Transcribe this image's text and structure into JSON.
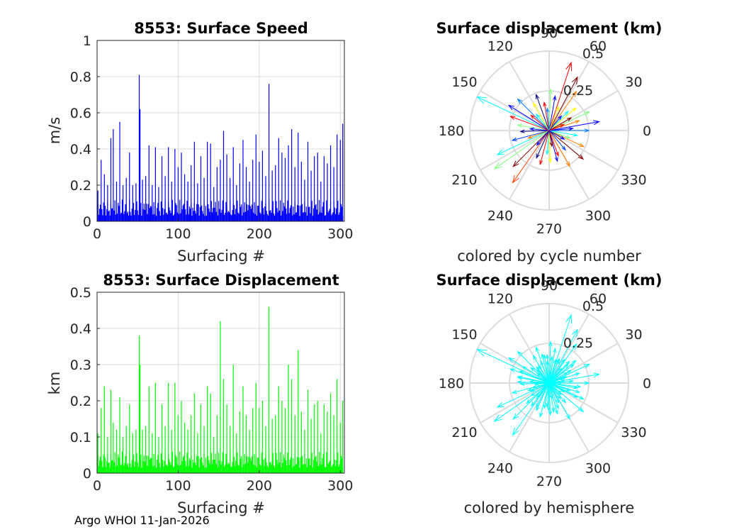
{
  "footer": "Argo WHOI 11-Jan-2026",
  "chart_data": [
    {
      "type": "bar",
      "title": "8553: Surface Speed",
      "xlabel": "Surfacing #",
      "ylabel": "m/s",
      "xlim": [
        0,
        305
      ],
      "ylim": [
        0,
        1
      ],
      "xticks": [
        "0",
        "100",
        "200",
        "300"
      ],
      "yticks": [
        "0",
        "0.2",
        "0.4",
        "0.6",
        "0.8",
        "1"
      ],
      "grid": true,
      "color": "#0000ff",
      "series_note": "approximate per-surfacing values read from the figure",
      "x": [
        1,
        5,
        9,
        13,
        17,
        20,
        24,
        28,
        32,
        36,
        40,
        44,
        48,
        52,
        53,
        56,
        60,
        64,
        68,
        72,
        76,
        80,
        84,
        88,
        92,
        96,
        100,
        104,
        108,
        112,
        116,
        120,
        124,
        128,
        132,
        136,
        140,
        144,
        148,
        152,
        156,
        160,
        164,
        168,
        172,
        176,
        180,
        184,
        188,
        192,
        196,
        200,
        204,
        208,
        212,
        216,
        220,
        224,
        228,
        232,
        236,
        240,
        244,
        248,
        252,
        256,
        260,
        264,
        268,
        272,
        276,
        280,
        284,
        288,
        292,
        296,
        300,
        303
      ],
      "values": [
        0.17,
        0.34,
        0.26,
        0.2,
        0.46,
        0.51,
        0.22,
        0.55,
        0.2,
        0.24,
        0.38,
        0.2,
        0.21,
        0.81,
        0.62,
        0.23,
        0.25,
        0.42,
        0.2,
        0.41,
        0.19,
        0.36,
        0.25,
        0.41,
        0.22,
        0.4,
        0.3,
        0.38,
        0.26,
        0.22,
        0.31,
        0.44,
        0.21,
        0.36,
        0.24,
        0.44,
        0.43,
        0.19,
        0.3,
        0.34,
        0.5,
        0.37,
        0.24,
        0.41,
        0.2,
        0.32,
        0.45,
        0.3,
        0.22,
        0.34,
        0.48,
        0.33,
        0.39,
        0.25,
        0.76,
        0.28,
        0.31,
        0.46,
        0.38,
        0.35,
        0.42,
        0.51,
        0.3,
        0.49,
        0.33,
        0.23,
        0.44,
        0.28,
        0.36,
        0.38,
        0.22,
        0.36,
        0.32,
        0.42,
        0.3,
        0.48,
        0.45,
        0.54
      ]
    },
    {
      "type": "polar-arrows",
      "title": "Surface displacement (km)",
      "subtitle": "colored by cycle number",
      "rmax": 0.5,
      "rticks": [
        "0.25",
        "0.5"
      ],
      "angle_ticks": [
        "0",
        "30",
        "60",
        "90",
        "120",
        "150",
        "180",
        "210",
        "240",
        "270",
        "300",
        "330"
      ],
      "colormap": "jet",
      "vectors": [
        {
          "angle": 155,
          "r": 0.5,
          "color": "#00ffff"
        },
        {
          "angle": 148,
          "r": 0.3,
          "color": "#0000ff"
        },
        {
          "angle": 72,
          "r": 0.45,
          "color": "#ff0000"
        },
        {
          "angle": 62,
          "r": 0.38,
          "color": "#800000"
        },
        {
          "angle": 55,
          "r": 0.3,
          "color": "#ff8000"
        },
        {
          "angle": 40,
          "r": 0.22,
          "color": "#ffff00"
        },
        {
          "angle": 25,
          "r": 0.28,
          "color": "#80ff80"
        },
        {
          "angle": 10,
          "r": 0.32,
          "color": "#0000ff"
        },
        {
          "angle": 0,
          "r": 0.25,
          "color": "#0080ff"
        },
        {
          "angle": 350,
          "r": 0.18,
          "color": "#00ffff"
        },
        {
          "angle": 335,
          "r": 0.24,
          "color": "#ff8000"
        },
        {
          "angle": 320,
          "r": 0.28,
          "color": "#800000"
        },
        {
          "angle": 300,
          "r": 0.26,
          "color": "#ff8000"
        },
        {
          "angle": 285,
          "r": 0.2,
          "color": "#0000ff"
        },
        {
          "angle": 272,
          "r": 0.2,
          "color": "#ffff00"
        },
        {
          "angle": 255,
          "r": 0.22,
          "color": "#ff0000"
        },
        {
          "angle": 235,
          "r": 0.4,
          "color": "#ff4000"
        },
        {
          "angle": 225,
          "r": 0.32,
          "color": "#800000"
        },
        {
          "angle": 215,
          "r": 0.42,
          "color": "#80ff80"
        },
        {
          "angle": 205,
          "r": 0.36,
          "color": "#00ffff"
        },
        {
          "angle": 195,
          "r": 0.24,
          "color": "#0040ff"
        },
        {
          "angle": 182,
          "r": 0.18,
          "color": "#000080"
        },
        {
          "angle": 170,
          "r": 0.2,
          "color": "#80ff80"
        },
        {
          "angle": 160,
          "r": 0.26,
          "color": "#ff0000"
        },
        {
          "angle": 135,
          "r": 0.28,
          "color": "#0080ff"
        },
        {
          "angle": 120,
          "r": 0.2,
          "color": "#ffff00"
        },
        {
          "angle": 110,
          "r": 0.24,
          "color": "#000080"
        },
        {
          "angle": 100,
          "r": 0.18,
          "color": "#ff0000"
        },
        {
          "angle": 88,
          "r": 0.26,
          "color": "#80ff80"
        },
        {
          "angle": 80,
          "r": 0.22,
          "color": "#0000ff"
        },
        {
          "angle": 45,
          "r": 0.17,
          "color": "#00ffff"
        },
        {
          "angle": 30,
          "r": 0.16,
          "color": "#800000"
        },
        {
          "angle": 18,
          "r": 0.2,
          "color": "#ff8000"
        },
        {
          "angle": 5,
          "r": 0.15,
          "color": "#0000ff"
        },
        {
          "angle": 340,
          "r": 0.14,
          "color": "#80ff80"
        },
        {
          "angle": 310,
          "r": 0.16,
          "color": "#0040ff"
        },
        {
          "angle": 290,
          "r": 0.17,
          "color": "#ff0000"
        },
        {
          "angle": 265,
          "r": 0.15,
          "color": "#00ffff"
        },
        {
          "angle": 245,
          "r": 0.19,
          "color": "#000080"
        },
        {
          "angle": 200,
          "r": 0.14,
          "color": "#ff8000"
        },
        {
          "angle": 175,
          "r": 0.12,
          "color": "#0000ff"
        },
        {
          "angle": 140,
          "r": 0.15,
          "color": "#ff0000"
        },
        {
          "angle": 128,
          "r": 0.13,
          "color": "#00ffff"
        },
        {
          "angle": 95,
          "r": 0.14,
          "color": "#0080ff"
        },
        {
          "angle": 68,
          "r": 0.16,
          "color": "#ffff00"
        },
        {
          "angle": 50,
          "r": 0.12,
          "color": "#0000ff"
        },
        {
          "angle": 22,
          "r": 0.1,
          "color": "#ff0000"
        },
        {
          "angle": 330,
          "r": 0.11,
          "color": "#0000ff"
        },
        {
          "angle": 280,
          "r": 0.1,
          "color": "#800000"
        },
        {
          "angle": 230,
          "r": 0.12,
          "color": "#0000ff"
        }
      ]
    },
    {
      "type": "bar",
      "title": "8553: Surface Displacement",
      "xlabel": "Surfacing #",
      "ylabel": "km",
      "xlim": [
        0,
        305
      ],
      "ylim": [
        0,
        0.5
      ],
      "xticks": [
        "0",
        "100",
        "200",
        "300"
      ],
      "yticks": [
        "0",
        "0.1",
        "0.2",
        "0.3",
        "0.4",
        "0.5"
      ],
      "grid": true,
      "color": "#00ff00",
      "series_note": "approximate per-surfacing values read from the figure",
      "x": [
        1,
        5,
        9,
        13,
        17,
        20,
        24,
        28,
        32,
        36,
        40,
        44,
        48,
        52,
        53,
        56,
        60,
        64,
        68,
        72,
        76,
        80,
        84,
        88,
        92,
        96,
        100,
        104,
        108,
        112,
        116,
        120,
        124,
        128,
        132,
        136,
        140,
        144,
        148,
        152,
        156,
        160,
        164,
        168,
        172,
        176,
        180,
        184,
        188,
        192,
        196,
        200,
        204,
        208,
        212,
        216,
        220,
        224,
        228,
        232,
        236,
        240,
        244,
        248,
        252,
        256,
        260,
        264,
        268,
        272,
        276,
        280,
        284,
        288,
        292,
        296,
        300,
        303
      ],
      "values": [
        0.11,
        0.18,
        0.24,
        0.1,
        0.23,
        0.14,
        0.12,
        0.21,
        0.1,
        0.13,
        0.19,
        0.11,
        0.12,
        0.38,
        0.3,
        0.12,
        0.13,
        0.24,
        0.11,
        0.25,
        0.1,
        0.19,
        0.13,
        0.25,
        0.12,
        0.25,
        0.16,
        0.2,
        0.14,
        0.12,
        0.16,
        0.22,
        0.11,
        0.19,
        0.13,
        0.24,
        0.22,
        0.1,
        0.16,
        0.42,
        0.26,
        0.19,
        0.13,
        0.3,
        0.11,
        0.17,
        0.24,
        0.16,
        0.12,
        0.18,
        0.25,
        0.18,
        0.2,
        0.13,
        0.46,
        0.15,
        0.16,
        0.24,
        0.2,
        0.18,
        0.3,
        0.26,
        0.16,
        0.34,
        0.17,
        0.12,
        0.23,
        0.15,
        0.19,
        0.2,
        0.11,
        0.19,
        0.17,
        0.22,
        0.16,
        0.26,
        0.14,
        0.2
      ]
    },
    {
      "type": "polar-arrows",
      "title": "Surface displacement (km)",
      "subtitle": "colored by hemisphere",
      "rmax": 0.5,
      "rticks": [
        "0.25",
        "0.5"
      ],
      "angle_ticks": [
        "0",
        "30",
        "60",
        "90",
        "120",
        "150",
        "180",
        "210",
        "240",
        "270",
        "300",
        "330"
      ],
      "color": "#00ffff"
    }
  ]
}
